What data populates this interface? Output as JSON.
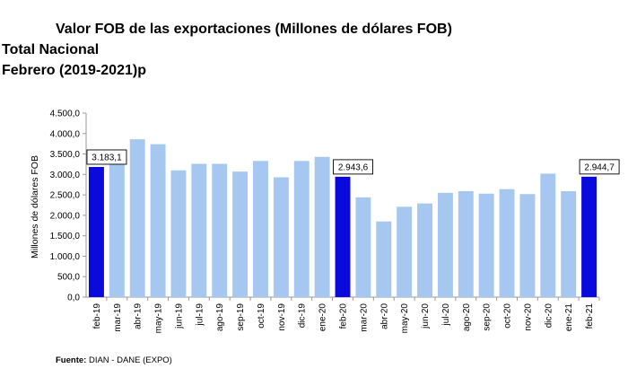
{
  "title": "Valor FOB de las exportaciones (Millones de dólares FOB)",
  "subtitle1": "Total Nacional",
  "subtitle2": "Febrero (2019-2021)p",
  "source_label": "Fuente:",
  "source_text": " DIAN - DANE (EXPO)",
  "chart_data": {
    "type": "bar",
    "title": "Valor FOB de las exportaciones (Millones de dólares FOB)",
    "xlabel": "",
    "ylabel": "Millones de dólares FOB",
    "ylim": [
      0,
      4500
    ],
    "ytick_step": 500,
    "ytick_labels": [
      "0,0",
      "500,0",
      "1.000,0",
      "1.500,0",
      "2.000,0",
      "2.500,0",
      "3.000,0",
      "3.500,0",
      "4.000,0",
      "4.500,0"
    ],
    "categories": [
      "feb-19",
      "mar-19",
      "abr-19",
      "may-19",
      "jun-19",
      "jul-19",
      "ago-19",
      "sep-19",
      "oct-19",
      "nov-19",
      "dic-19",
      "ene-20",
      "feb-20",
      "mar-20",
      "abr-20",
      "may-20",
      "jun-20",
      "jul-20",
      "ago-20",
      "sep-20",
      "oct-20",
      "nov-20",
      "dic-20",
      "ene-21",
      "feb-21"
    ],
    "values": [
      3183.1,
      3290,
      3860,
      3740,
      3100,
      3260,
      3260,
      3070,
      3330,
      2930,
      3330,
      3430,
      2943.6,
      2440,
      1850,
      2210,
      2290,
      2550,
      2590,
      2530,
      2640,
      2520,
      3020,
      2590,
      2944.7
    ],
    "highlight_indices": [
      0,
      12,
      24
    ],
    "data_labels": [
      {
        "index": 0,
        "text": "3.183,1"
      },
      {
        "index": 12,
        "text": "2.943,6"
      },
      {
        "index": 24,
        "text": "2.944,7"
      }
    ],
    "colors": {
      "normal": "#a6c8f0",
      "highlight": "#0a0adc",
      "axis": "#9a9a9a",
      "grid": "#d9d9d9"
    },
    "grid": false
  }
}
